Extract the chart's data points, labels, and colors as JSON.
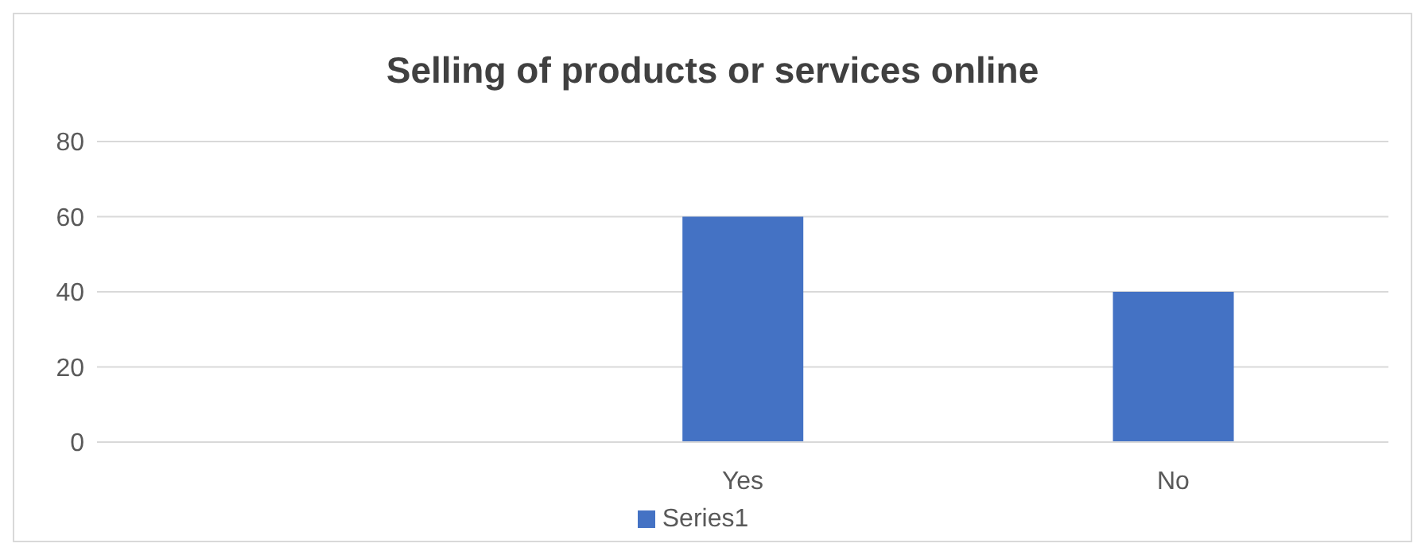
{
  "chart_data": {
    "type": "bar",
    "title": "Selling of products or services online",
    "categories": [
      null,
      "Yes",
      "No"
    ],
    "series": [
      {
        "name": "Series1",
        "color": "#4472c4",
        "values": [
          null,
          60,
          40
        ]
      }
    ],
    "ylim": [
      0,
      80
    ],
    "yticks": [
      0,
      20,
      40,
      60,
      80
    ],
    "grid": "y",
    "legend": "bottom"
  }
}
